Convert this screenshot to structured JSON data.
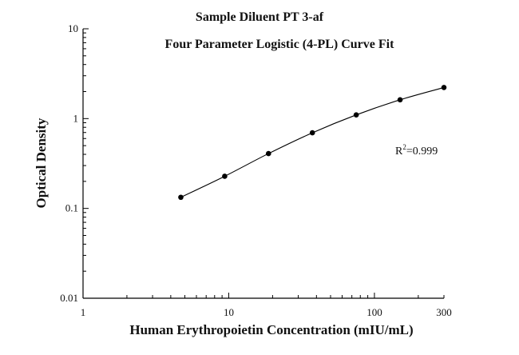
{
  "chart_data": {
    "type": "scatter",
    "title": "Sample Diluent PT 3-af",
    "subtitle": "Four Parameter Logistic (4-PL) Curve Fit",
    "xlabel": "Human Erythropoietin Concentration (mIU/mL)",
    "ylabel": "Optical Density",
    "x_scale": "log",
    "y_scale": "log",
    "xlim": [
      1,
      300
    ],
    "ylim": [
      0.01,
      10
    ],
    "x_ticks": [
      {
        "value": 1,
        "label": "1"
      },
      {
        "value": 10,
        "label": "10"
      },
      {
        "value": 100,
        "label": "100"
      },
      {
        "value": 300,
        "label": "300"
      }
    ],
    "y_ticks": [
      {
        "value": 0.01,
        "label": "0.01"
      },
      {
        "value": 0.1,
        "label": "0.1"
      },
      {
        "value": 1,
        "label": "1"
      },
      {
        "value": 10,
        "label": "10"
      }
    ],
    "series": [
      {
        "points": [
          {
            "x": 4.69,
            "y": 0.133
          },
          {
            "x": 9.38,
            "y": 0.228
          },
          {
            "x": 18.75,
            "y": 0.408
          },
          {
            "x": 37.5,
            "y": 0.695
          },
          {
            "x": 75,
            "y": 1.1
          },
          {
            "x": 150,
            "y": 1.62
          },
          {
            "x": 300,
            "y": 2.22
          }
        ],
        "fit": "4-PL"
      }
    ],
    "annotation": {
      "text_prefix": "R",
      "superscript": "2",
      "text_suffix": "=0.999"
    },
    "grid": false,
    "legend": "none"
  }
}
